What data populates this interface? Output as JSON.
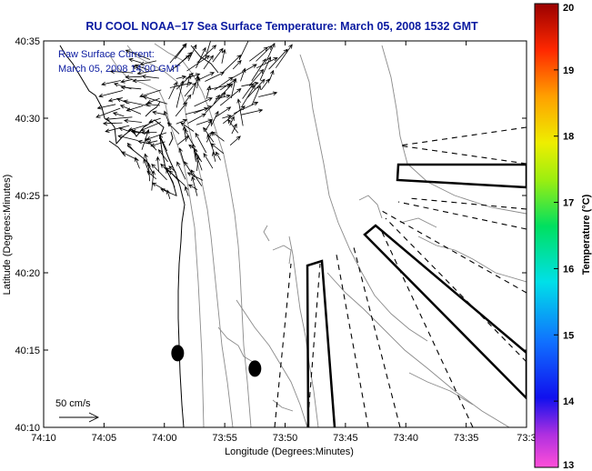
{
  "chart_data": {
    "type": "map-vector-field",
    "title": "RU COOL  NOAA−17 Sea Surface Temperature:  March 05, 2008 1532 GMT",
    "xlabel": "Longitude (Degrees:Minutes)",
    "ylabel": "Latitude (Degrees:Minutes)",
    "x_ticks": [
      "74:10",
      "74:05",
      "74:00",
      "73:55",
      "73:50",
      "73:45",
      "73:40",
      "73:35",
      "73:3"
    ],
    "x_tick_minutes_west": [
      10,
      5,
      0,
      -5,
      -10,
      -15,
      -20,
      -25,
      -30
    ],
    "y_ticks": [
      "40:35",
      "40:30",
      "40:25",
      "40:20",
      "40:15",
      "40:10"
    ],
    "y_tick_minutes": [
      35,
      30,
      25,
      20,
      15,
      10
    ],
    "xlim_minutes_west": [
      10,
      -30
    ],
    "ylim_minutes": [
      10,
      35
    ],
    "legend": {
      "line1": "Raw Surface Current:",
      "line2": "March 05, 2008 14:00 GMT"
    },
    "scale_arrow": {
      "label": "50 cm/s",
      "speed_cm_s": 50
    },
    "colorbar": {
      "label": "Temperature (°C)",
      "ticks": [
        "20",
        "19",
        "18",
        "17",
        "16",
        "15",
        "14",
        "13"
      ],
      "min": 13,
      "max": 20
    },
    "station_markers": [
      {
        "lon_min": -1.1,
        "lat_min": 14.8
      },
      {
        "lon_min": -7.5,
        "lat_min": 13.8
      }
    ],
    "current_region": {
      "lon_min": [
        -10,
        5
      ],
      "lat_min": [
        24.4,
        33.7
      ]
    }
  },
  "colors": {
    "title": "#0a1aa0",
    "legend_text": "#0a1aa0",
    "axes": "#000000",
    "contours": "#8a8a8a",
    "arrows": "#000000"
  }
}
